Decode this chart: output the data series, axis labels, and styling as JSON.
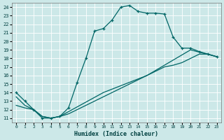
{
  "xlabel": "Humidex (Indice chaleur)",
  "xlim": [
    -0.5,
    23.5
  ],
  "ylim": [
    10.5,
    24.5
  ],
  "xticks": [
    0,
    1,
    2,
    3,
    4,
    5,
    6,
    7,
    8,
    9,
    10,
    11,
    12,
    13,
    14,
    15,
    16,
    17,
    18,
    19,
    20,
    21,
    22,
    23
  ],
  "yticks": [
    11,
    12,
    13,
    14,
    15,
    16,
    17,
    18,
    19,
    20,
    21,
    22,
    23,
    24
  ],
  "bg_color": "#cce8e8",
  "line_color": "#006666",
  "grid_color": "#ffffff",
  "curve1_x": [
    0,
    1,
    2,
    3,
    4,
    5,
    6,
    7,
    8,
    9,
    10,
    11,
    12,
    13,
    14,
    15,
    16,
    17,
    18,
    19,
    20,
    21,
    22,
    23
  ],
  "curve1_y": [
    14,
    13,
    12,
    11,
    11,
    11.2,
    12.2,
    15.2,
    18,
    21.2,
    21.5,
    22.5,
    24,
    24.2,
    23.5,
    23.3,
    23.3,
    23.2,
    20.5,
    19.2,
    19.2,
    18.8,
    18.5,
    18.2
  ],
  "curve2_x": [
    0,
    1,
    2,
    3,
    4,
    5,
    6,
    7,
    8,
    9,
    10,
    11,
    12,
    13,
    14,
    15,
    16,
    17,
    18,
    19,
    20,
    21,
    22,
    23
  ],
  "curve2_y": [
    12.5,
    12.2,
    12.0,
    11.2,
    11.0,
    11.2,
    11.5,
    12.0,
    12.5,
    13.0,
    13.5,
    14.0,
    14.5,
    15.0,
    15.5,
    16.0,
    16.5,
    17.0,
    17.2,
    17.5,
    18.0,
    18.5,
    18.5,
    18.2
  ],
  "curve3_x": [
    0,
    1,
    2,
    3,
    4,
    5,
    10,
    15,
    20,
    23
  ],
  "curve3_y": [
    13.5,
    12.5,
    12.0,
    11.2,
    11.0,
    11.2,
    14.0,
    16.0,
    19.0,
    18.2
  ]
}
